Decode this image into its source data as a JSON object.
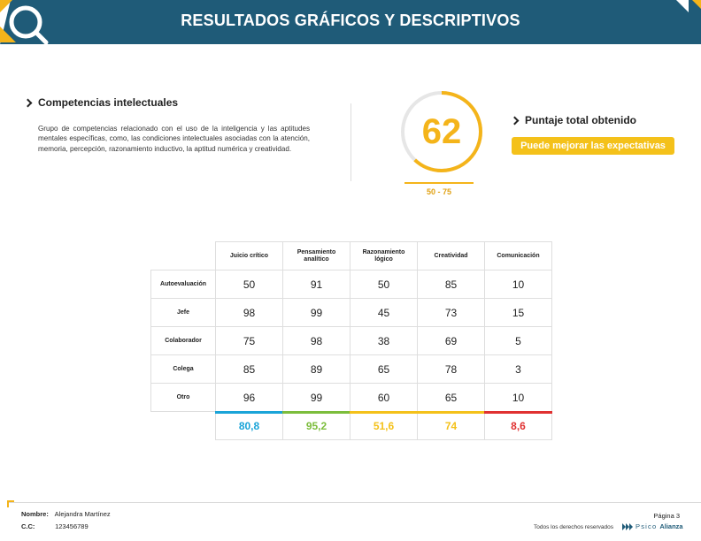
{
  "header": {
    "title": "RESULTADOS GRÁFICOS Y DESCRIPTIVOS"
  },
  "section": {
    "heading": "Competencias intelectuales",
    "description": "Grupo de competencias relacionado con el uso de la inteligencia y las aptitudes mentales específicas, como, las condiciones intelectuales asociadas con la atención, memoria, percepción, razonamiento inductivo, la aptitud numérica y creatividad."
  },
  "score": {
    "value": "62",
    "range": "50 - 75",
    "heading": "Puntaje total obtenido",
    "badge": "Puede mejorar las expectativas",
    "fraction": 0.62,
    "color": "#f4b41a"
  },
  "table": {
    "columns": [
      "Juicio crítico",
      "Pensamiento analítico",
      "Razonamiento lógico",
      "Creatividad",
      "Comunicación"
    ],
    "rows": [
      {
        "label": "Autoevaluación",
        "values": [
          "50",
          "91",
          "50",
          "85",
          "10"
        ]
      },
      {
        "label": "Jefe",
        "values": [
          "98",
          "99",
          "45",
          "73",
          "15"
        ]
      },
      {
        "label": "Colaborador",
        "values": [
          "75",
          "98",
          "38",
          "69",
          "5"
        ]
      },
      {
        "label": "Colega",
        "values": [
          "85",
          "89",
          "65",
          "78",
          "3"
        ]
      },
      {
        "label": "Otro",
        "values": [
          "96",
          "99",
          "60",
          "65",
          "10"
        ]
      }
    ],
    "averages": [
      "80,8",
      "95,2",
      "51,6",
      "74",
      "8,6"
    ],
    "average_colors": [
      "#1aa4d8",
      "#7cbd3c",
      "#f4c11a",
      "#f4c11a",
      "#e03131"
    ]
  },
  "footer": {
    "name_label": "Nombre:",
    "name_value": "Alejandra Martínez",
    "cc_label": "C.C:",
    "cc_value": "123456789",
    "page": "Página 3",
    "rights": "Todos los derechos reservados",
    "logo_light": "Psico",
    "logo_bold": "Alianza"
  }
}
